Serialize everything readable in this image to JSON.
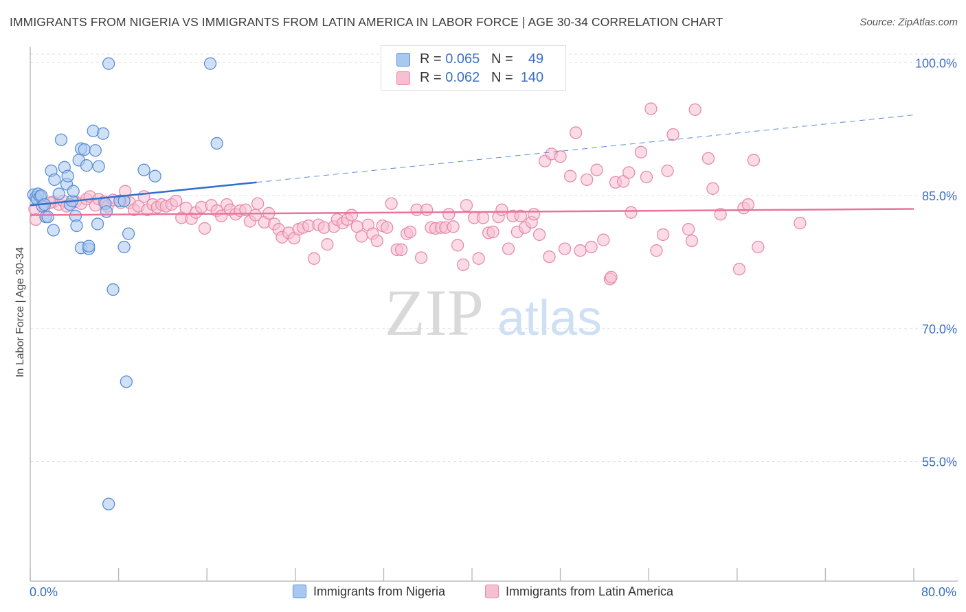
{
  "header": {
    "title": "IMMIGRANTS FROM NIGERIA VS IMMIGRANTS FROM LATIN AMERICA IN LABOR FORCE | AGE 30-34 CORRELATION CHART",
    "source": "Source: ZipAtlas.com"
  },
  "watermark": {
    "zip": "ZIP",
    "atlas": "atlas"
  },
  "legend": {
    "nigeria": {
      "r_label": "R =",
      "r_value": "0.065",
      "n_label": "N =",
      "n_value": "49"
    },
    "latin": {
      "r_label": "R =",
      "r_value": "0.062",
      "n_label": "N =",
      "n_value": "140"
    }
  },
  "colors": {
    "nigeria_fill": "#a9c8ef",
    "nigeria_stroke": "#5b8fd6",
    "nigeria_line": "#2f6fce",
    "latin_fill": "#f7bfd2",
    "latin_stroke": "#e88aab",
    "latin_line": "#e8739b",
    "axis_label": "#3a6fc4",
    "grid": "#dddddd"
  },
  "chart_data": {
    "type": "scatter",
    "title": "IMMIGRANTS FROM NIGERIA VS IMMIGRANTS FROM LATIN AMERICA IN LABOR FORCE | AGE 30-34 CORRELATION CHART",
    "xlabel": "",
    "ylabel": "In Labor Force | Age 30-34",
    "xlim": [
      0,
      80
    ],
    "ylim": [
      41.5,
      101.5
    ],
    "x_tick_labels": [
      "0.0%",
      "80.0%"
    ],
    "y_ticks": [
      55,
      70,
      85,
      100
    ],
    "y_tick_labels": [
      "55.0%",
      "70.0%",
      "85.0%",
      "100.0%"
    ],
    "grid": true,
    "legend_position": "top-center",
    "series": [
      {
        "name": "Immigrants from Nigeria",
        "r": 0.065,
        "n": 49,
        "trend": {
          "x": [
            0,
            20.5
          ],
          "y": [
            83.9,
            86.5
          ],
          "dashed_extension_to": [
            80,
            94.1
          ]
        },
        "points": [
          [
            0.3,
            85.1
          ],
          [
            0.5,
            84.8
          ],
          [
            0.6,
            84.6
          ],
          [
            0.7,
            85.2
          ],
          [
            0.9,
            84.9
          ],
          [
            1.0,
            85.0
          ],
          [
            1.1,
            83.8
          ],
          [
            1.3,
            84.0
          ],
          [
            1.4,
            82.6
          ],
          [
            1.6,
            82.6
          ],
          [
            1.9,
            87.8
          ],
          [
            2.1,
            81.1
          ],
          [
            2.2,
            86.8
          ],
          [
            2.6,
            85.2
          ],
          [
            2.8,
            91.3
          ],
          [
            3.1,
            88.2
          ],
          [
            3.3,
            86.3
          ],
          [
            3.4,
            87.2
          ],
          [
            3.6,
            84.0
          ],
          [
            3.8,
            84.4
          ],
          [
            3.9,
            85.5
          ],
          [
            4.1,
            82.7
          ],
          [
            4.2,
            81.6
          ],
          [
            4.4,
            89.0
          ],
          [
            4.6,
            90.3
          ],
          [
            4.6,
            79.1
          ],
          [
            4.9,
            90.2
          ],
          [
            5.1,
            88.4
          ],
          [
            5.3,
            79.0
          ],
          [
            5.3,
            79.3
          ],
          [
            5.7,
            92.3
          ],
          [
            5.9,
            90.1
          ],
          [
            6.1,
            81.8
          ],
          [
            6.2,
            88.3
          ],
          [
            6.6,
            92.0
          ],
          [
            6.8,
            84.1
          ],
          [
            6.9,
            83.2
          ],
          [
            7.1,
            99.9
          ],
          [
            7.5,
            74.4
          ],
          [
            8.1,
            84.4
          ],
          [
            8.5,
            84.4
          ],
          [
            8.5,
            79.2
          ],
          [
            8.7,
            64.0
          ],
          [
            8.9,
            80.7
          ],
          [
            10.3,
            87.9
          ],
          [
            11.3,
            87.2
          ],
          [
            16.3,
            99.9
          ],
          [
            16.9,
            90.9
          ],
          [
            7.1,
            50.2
          ]
        ]
      },
      {
        "name": "Immigrants from Latin America",
        "r": 0.062,
        "n": 140,
        "trend": {
          "x": [
            0,
            80
          ],
          "y": [
            82.8,
            83.5
          ]
        },
        "points": [
          [
            0.4,
            83.5
          ],
          [
            0.5,
            82.3
          ],
          [
            1.3,
            83.8
          ],
          [
            2.1,
            84.3
          ],
          [
            2.6,
            84.0
          ],
          [
            3.0,
            84.4
          ],
          [
            3.3,
            83.8
          ],
          [
            4.1,
            84.3
          ],
          [
            4.6,
            84.1
          ],
          [
            5.1,
            84.6
          ],
          [
            5.4,
            84.9
          ],
          [
            5.9,
            83.9
          ],
          [
            6.2,
            84.6
          ],
          [
            6.7,
            84.3
          ],
          [
            7.0,
            83.8
          ],
          [
            7.5,
            84.5
          ],
          [
            8.2,
            84.2
          ],
          [
            8.6,
            85.5
          ],
          [
            9.0,
            84.2
          ],
          [
            9.4,
            83.4
          ],
          [
            9.8,
            83.8
          ],
          [
            10.3,
            84.9
          ],
          [
            10.6,
            83.4
          ],
          [
            11.1,
            84.0
          ],
          [
            11.5,
            83.7
          ],
          [
            11.9,
            84.0
          ],
          [
            12.3,
            83.8
          ],
          [
            12.8,
            84.0
          ],
          [
            13.2,
            84.4
          ],
          [
            13.7,
            82.5
          ],
          [
            14.1,
            83.6
          ],
          [
            14.6,
            82.4
          ],
          [
            15.0,
            83.1
          ],
          [
            15.5,
            83.7
          ],
          [
            15.8,
            81.3
          ],
          [
            16.4,
            83.9
          ],
          [
            16.9,
            83.3
          ],
          [
            17.3,
            82.7
          ],
          [
            17.8,
            84.0
          ],
          [
            18.1,
            83.4
          ],
          [
            18.6,
            82.9
          ],
          [
            19.0,
            83.3
          ],
          [
            19.5,
            83.4
          ],
          [
            19.9,
            82.1
          ],
          [
            20.4,
            82.8
          ],
          [
            20.6,
            84.1
          ],
          [
            21.2,
            82.0
          ],
          [
            21.6,
            83.0
          ],
          [
            22.1,
            81.8
          ],
          [
            22.5,
            81.2
          ],
          [
            22.8,
            80.3
          ],
          [
            23.4,
            80.8
          ],
          [
            23.9,
            80.2
          ],
          [
            24.3,
            81.2
          ],
          [
            24.7,
            81.4
          ],
          [
            25.2,
            81.6
          ],
          [
            25.7,
            77.9
          ],
          [
            26.1,
            81.7
          ],
          [
            26.6,
            81.4
          ],
          [
            26.9,
            79.5
          ],
          [
            27.5,
            81.5
          ],
          [
            27.8,
            82.3
          ],
          [
            28.3,
            81.9
          ],
          [
            28.7,
            82.3
          ],
          [
            29.1,
            82.8
          ],
          [
            29.6,
            81.5
          ],
          [
            30.0,
            80.4
          ],
          [
            30.6,
            81.7
          ],
          [
            31.0,
            80.7
          ],
          [
            31.4,
            79.9
          ],
          [
            31.9,
            81.6
          ],
          [
            32.3,
            81.4
          ],
          [
            32.7,
            84.1
          ],
          [
            33.2,
            78.9
          ],
          [
            33.6,
            78.9
          ],
          [
            34.1,
            80.7
          ],
          [
            34.4,
            80.9
          ],
          [
            35.0,
            83.4
          ],
          [
            35.4,
            78.0
          ],
          [
            35.9,
            83.4
          ],
          [
            36.3,
            81.4
          ],
          [
            36.7,
            81.3
          ],
          [
            37.2,
            81.4
          ],
          [
            37.6,
            81.4
          ],
          [
            37.9,
            82.9
          ],
          [
            38.3,
            81.5
          ],
          [
            38.7,
            79.4
          ],
          [
            39.2,
            77.2
          ],
          [
            39.5,
            83.9
          ],
          [
            40.2,
            82.5
          ],
          [
            40.6,
            77.9
          ],
          [
            41.0,
            82.5
          ],
          [
            41.5,
            80.8
          ],
          [
            41.9,
            80.9
          ],
          [
            42.4,
            82.6
          ],
          [
            42.7,
            83.4
          ],
          [
            43.3,
            79.0
          ],
          [
            43.7,
            82.7
          ],
          [
            44.1,
            80.9
          ],
          [
            44.4,
            82.7
          ],
          [
            44.8,
            81.4
          ],
          [
            45.4,
            82.0
          ],
          [
            45.6,
            82.9
          ],
          [
            46.1,
            80.6
          ],
          [
            46.6,
            88.9
          ],
          [
            47.0,
            78.1
          ],
          [
            47.2,
            89.7
          ],
          [
            48.0,
            89.4
          ],
          [
            48.4,
            79.0
          ],
          [
            48.9,
            87.2
          ],
          [
            49.4,
            92.1
          ],
          [
            49.8,
            78.8
          ],
          [
            50.4,
            86.8
          ],
          [
            50.8,
            79.2
          ],
          [
            51.3,
            87.9
          ],
          [
            51.9,
            80.0
          ],
          [
            52.5,
            75.6
          ],
          [
            52.6,
            75.8
          ],
          [
            53.0,
            86.5
          ],
          [
            53.7,
            86.6
          ],
          [
            54.2,
            87.6
          ],
          [
            54.4,
            83.1
          ],
          [
            55.3,
            89.9
          ],
          [
            55.8,
            87.1
          ],
          [
            56.2,
            94.8
          ],
          [
            56.7,
            78.8
          ],
          [
            57.3,
            80.6
          ],
          [
            57.7,
            87.8
          ],
          [
            58.2,
            91.9
          ],
          [
            59.6,
            81.2
          ],
          [
            59.9,
            79.9
          ],
          [
            60.2,
            94.7
          ],
          [
            61.4,
            89.2
          ],
          [
            61.8,
            85.8
          ],
          [
            62.5,
            82.9
          ],
          [
            64.2,
            76.7
          ],
          [
            64.6,
            83.6
          ],
          [
            65.0,
            84.0
          ],
          [
            65.5,
            89.0
          ],
          [
            65.9,
            79.2
          ],
          [
            69.7,
            81.9
          ],
          [
            1.8,
            84.2
          ]
        ]
      }
    ]
  },
  "bottom_legend": {
    "nigeria_label": "Immigrants from Nigeria",
    "latin_label": "Immigrants from Latin America"
  }
}
